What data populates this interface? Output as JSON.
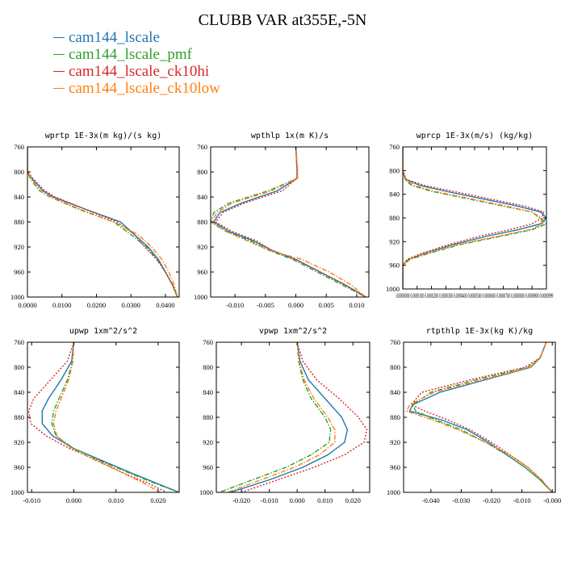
{
  "title": "CLUBB VAR at355E,-5N",
  "legend": [
    {
      "name": "cam144_lscale",
      "color": "#1f77b4",
      "dash": "solid"
    },
    {
      "name": "cam144_lscale_pmf",
      "color": "#2ca02c",
      "dash": "dashdot"
    },
    {
      "name": "cam144_lscale_ck10hi",
      "color": "#d62728",
      "dash": "dotted"
    },
    {
      "name": "cam144_lscale_ck10low",
      "color": "#ff7f0e",
      "dash": "dashdot"
    }
  ],
  "chart_data": [
    {
      "type": "line",
      "title": "wprtp  1E-3x(m kg)/(s kg)",
      "xlim": [
        0,
        0.044
      ],
      "ylim": [
        760,
        1000
      ],
      "xticks": [
        0,
        0.01,
        0.02,
        0.03,
        0.04
      ],
      "xtick_labels": [
        "0.0000",
        "0.0100",
        "0.0200",
        "0.0300",
        "0.0400"
      ],
      "yticks": [
        760,
        800,
        840,
        880,
        920,
        960,
        1000
      ],
      "ytick_labels": [
        "760",
        "800",
        "840",
        "880",
        "920",
        "960",
        "1000"
      ],
      "y": [
        760,
        800,
        810,
        820,
        830,
        840,
        860,
        880,
        900,
        920,
        940,
        960,
        980,
        1000
      ],
      "series": [
        {
          "name": "cam144_lscale",
          "values": [
            0,
            0,
            0.0012,
            0.0028,
            0.0045,
            0.0075,
            0.017,
            0.027,
            0.031,
            0.035,
            0.038,
            0.04,
            0.042,
            0.0435
          ]
        },
        {
          "name": "cam144_lscale_pmf",
          "values": [
            0,
            0,
            0.0008,
            0.002,
            0.0035,
            0.0065,
            0.015,
            0.025,
            0.03,
            0.0345,
            0.0375,
            0.04,
            0.042,
            0.0435
          ]
        },
        {
          "name": "cam144_lscale_ck10hi",
          "values": [
            0,
            0,
            0.0015,
            0.0032,
            0.005,
            0.008,
            0.017,
            0.026,
            0.031,
            0.034,
            0.0375,
            0.04,
            0.042,
            0.0435
          ]
        },
        {
          "name": "cam144_lscale_ck10low",
          "values": [
            0,
            0,
            0.001,
            0.0022,
            0.0038,
            0.0068,
            0.0155,
            0.025,
            0.032,
            0.036,
            0.039,
            0.041,
            0.0425,
            0.0435
          ]
        }
      ]
    },
    {
      "type": "line",
      "title": "wpthlp  1x(m K)/s",
      "xlim": [
        -0.014,
        0.012
      ],
      "ylim": [
        760,
        1000
      ],
      "xticks": [
        -0.01,
        -0.005,
        0,
        0.005,
        0.01
      ],
      "xtick_labels": [
        "-0.010",
        "-0.005",
        "0.000",
        "0.005",
        "0.010"
      ],
      "yticks": [
        760,
        800,
        840,
        880,
        920,
        960,
        1000
      ],
      "ytick_labels": [
        "760",
        "800",
        "840",
        "880",
        "920",
        "960",
        "1000"
      ],
      "y": [
        760,
        800,
        810,
        830,
        850,
        865,
        880,
        895,
        910,
        925,
        940,
        960,
        980,
        1000
      ],
      "series": [
        {
          "name": "cam144_lscale",
          "values": [
            0,
            0.0002,
            0.0002,
            -0.003,
            -0.009,
            -0.0125,
            -0.0135,
            -0.011,
            -0.007,
            -0.004,
            0.0,
            0.004,
            0.008,
            0.0115
          ]
        },
        {
          "name": "cam144_lscale_pmf",
          "values": [
            0,
            0.0003,
            0.0003,
            -0.0045,
            -0.011,
            -0.0135,
            -0.014,
            -0.0115,
            -0.0075,
            -0.0045,
            -0.0005,
            0.0035,
            0.0075,
            0.0115
          ]
        },
        {
          "name": "cam144_lscale_ck10hi",
          "values": [
            0,
            0.0002,
            0.0002,
            -0.0022,
            -0.0085,
            -0.012,
            -0.0132,
            -0.0105,
            -0.0065,
            -0.004,
            0.0,
            0.004,
            0.008,
            0.0115
          ]
        },
        {
          "name": "cam144_lscale_ck10low",
          "values": [
            0,
            0.0003,
            0.0003,
            -0.004,
            -0.0105,
            -0.013,
            -0.0138,
            -0.0115,
            -0.008,
            -0.0045,
            0.001,
            0.0055,
            0.009,
            0.0115
          ]
        }
      ]
    },
    {
      "type": "line",
      "title": "wprcp  1E-3x(m/s) (kg/kg)",
      "xlim": [
        0,
        0.0001
      ],
      "ylim": [
        760,
        1000
      ],
      "xticks": [
        0,
        1e-05,
        2e-05,
        3e-05,
        4e-05,
        5e-05,
        6e-05,
        7e-05,
        8e-05,
        9e-05,
        0.0001
      ],
      "xtick_labels": [
        "0.0000000",
        "0.0000100",
        "0.0000200",
        "0.0000300",
        "0.0000400",
        "0.0000500",
        "0.0000600",
        "0.0000700",
        "0.0000800",
        "0.0000900",
        "0.0000999"
      ],
      "yticks": [
        760,
        800,
        840,
        880,
        920,
        960,
        1000
      ],
      "ytick_labels": [
        "760",
        "800",
        "840",
        "880",
        "920",
        "960",
        "1000"
      ],
      "y": [
        760,
        800,
        815,
        825,
        835,
        845,
        860,
        870,
        880,
        890,
        900,
        910,
        925,
        940,
        950,
        960,
        1000
      ],
      "series": [
        {
          "name": "cam144_lscale",
          "values": [
            0,
            0,
            2e-06,
            1.2e-05,
            3e-05,
            5e-05,
            8e-05,
            9.6e-05,
            0.0001,
            9.6e-05,
            8e-05,
            6e-05,
            3.5e-05,
            1.5e-05,
            4e-06,
            0,
            0
          ]
        },
        {
          "name": "cam144_lscale_pmf",
          "values": [
            0,
            0,
            1.5e-06,
            6e-06,
            2e-05,
            4e-05,
            7e-05,
            9e-05,
            9.6e-05,
            0.0001,
            9e-05,
            7e-05,
            4e-05,
            1.8e-05,
            5e-06,
            0,
            0
          ]
        },
        {
          "name": "cam144_lscale_ck10hi",
          "values": [
            0,
            0,
            2.5e-06,
            1.5e-05,
            3.5e-05,
            5.5e-05,
            8.5e-05,
            9.8e-05,
            9.7e-05,
            9e-05,
            7.4e-05,
            5.5e-05,
            3.2e-05,
            1.3e-05,
            3e-06,
            0,
            0
          ]
        },
        {
          "name": "cam144_lscale_ck10low",
          "values": [
            0,
            0,
            1.5e-06,
            8e-06,
            2.2e-05,
            4.2e-05,
            7.2e-05,
            9e-05,
            9.5e-05,
            9.8e-05,
            8.8e-05,
            6.8e-05,
            3.8e-05,
            1.6e-05,
            4e-06,
            0,
            0
          ]
        }
      ]
    },
    {
      "type": "line",
      "title": "upwp  1xm^2/s^2",
      "xlim": [
        -0.011,
        0.025
      ],
      "ylim": [
        760,
        1000
      ],
      "xticks": [
        -0.01,
        0,
        0.01,
        0.02
      ],
      "xtick_labels": [
        "-0.010",
        "0.000",
        "0.010",
        "0.020"
      ],
      "yticks": [
        760,
        800,
        840,
        880,
        920,
        960,
        1000
      ],
      "ytick_labels": [
        "760",
        "800",
        "840",
        "880",
        "920",
        "960",
        "1000"
      ],
      "y": [
        760,
        790,
        820,
        850,
        870,
        890,
        910,
        930,
        950,
        970,
        985,
        1000
      ],
      "series": [
        {
          "name": "cam144_lscale",
          "values": [
            0,
            -0.0005,
            -0.003,
            -0.006,
            -0.0075,
            -0.0075,
            -0.005,
            0.0,
            0.007,
            0.014,
            0.0195,
            0.025
          ]
        },
        {
          "name": "cam144_lscale_pmf",
          "values": [
            0,
            -0.0003,
            -0.0015,
            -0.0035,
            -0.0048,
            -0.0052,
            -0.0042,
            0.0,
            0.0065,
            0.0135,
            0.019,
            0.025
          ]
        },
        {
          "name": "cam144_lscale_ck10hi",
          "values": [
            0,
            -0.0015,
            -0.0055,
            -0.0095,
            -0.0107,
            -0.0102,
            -0.0065,
            -0.001,
            0.006,
            0.012,
            0.0175,
            0.022
          ]
        },
        {
          "name": "cam144_lscale_ck10low",
          "values": [
            0,
            -0.0002,
            -0.0012,
            -0.003,
            -0.0042,
            -0.0048,
            -0.004,
            -0.0005,
            0.0055,
            0.012,
            0.0165,
            0.0205
          ]
        }
      ]
    },
    {
      "type": "line",
      "title": "vpwp  1xm^2/s^2",
      "xlim": [
        -0.029,
        0.026
      ],
      "ylim": [
        760,
        1000
      ],
      "xticks": [
        -0.02,
        -0.01,
        0,
        0.01,
        0.02
      ],
      "xtick_labels": [
        "-0.020",
        "-0.010",
        "0.000",
        "0.010",
        "0.020"
      ],
      "yticks": [
        760,
        800,
        840,
        880,
        920,
        960,
        1000
      ],
      "ytick_labels": [
        "760",
        "800",
        "840",
        "880",
        "920",
        "960",
        "1000"
      ],
      "y": [
        760,
        790,
        820,
        850,
        880,
        900,
        920,
        940,
        960,
        980,
        1000
      ],
      "series": [
        {
          "name": "cam144_lscale",
          "values": [
            0,
            0.001,
            0.004,
            0.01,
            0.016,
            0.018,
            0.017,
            0.011,
            0.002,
            -0.01,
            -0.024
          ]
        },
        {
          "name": "cam144_lscale_pmf",
          "values": [
            0,
            0.0005,
            0.002,
            0.005,
            0.01,
            0.012,
            0.0115,
            0.005,
            -0.004,
            -0.016,
            -0.028
          ]
        },
        {
          "name": "cam144_lscale_ck10hi",
          "values": [
            0,
            0.002,
            0.007,
            0.015,
            0.022,
            0.025,
            0.024,
            0.017,
            0.006,
            -0.007,
            -0.02
          ]
        },
        {
          "name": "cam144_lscale_ck10low",
          "values": [
            0,
            0.0006,
            0.0025,
            0.006,
            0.011,
            0.0135,
            0.0135,
            0.008,
            -0.001,
            -0.013,
            -0.025
          ]
        }
      ]
    },
    {
      "type": "line",
      "title": "rtpthlp  1E-3x(kg K)/kg",
      "xlim": [
        -0.049,
        0.001
      ],
      "ylim": [
        760,
        1000
      ],
      "xticks": [
        -0.04,
        -0.03,
        -0.02,
        -0.01,
        0
      ],
      "xtick_labels": [
        "-0.040",
        "-0.030",
        "-0.020",
        "-0.010",
        "-0.000"
      ],
      "yticks": [
        760,
        800,
        840,
        880,
        920,
        960,
        1000
      ],
      "ytick_labels": [
        "760",
        "800",
        "840",
        "880",
        "920",
        "960",
        "1000"
      ],
      "y": [
        760,
        785,
        800,
        820,
        840,
        860,
        870,
        885,
        900,
        920,
        940,
        960,
        980,
        1000
      ],
      "series": [
        {
          "name": "cam144_lscale",
          "values": [
            -0.002,
            -0.004,
            -0.007,
            -0.022,
            -0.037,
            -0.046,
            -0.047,
            -0.036,
            -0.028,
            -0.021,
            -0.015,
            -0.009,
            -0.004,
            0.0
          ]
        },
        {
          "name": "cam144_lscale_pmf",
          "values": [
            -0.002,
            -0.004,
            -0.008,
            -0.025,
            -0.04,
            -0.046,
            -0.045,
            -0.038,
            -0.03,
            -0.022,
            -0.015,
            -0.009,
            -0.004,
            0.0
          ]
        },
        {
          "name": "cam144_lscale_ck10hi",
          "values": [
            -0.002,
            -0.004,
            -0.009,
            -0.027,
            -0.043,
            -0.0465,
            -0.042,
            -0.034,
            -0.027,
            -0.02,
            -0.014,
            -0.008,
            -0.0035,
            0.0
          ]
        },
        {
          "name": "cam144_lscale_ck10low",
          "values": [
            -0.002,
            -0.004,
            -0.007,
            -0.023,
            -0.039,
            -0.047,
            -0.048,
            -0.039,
            -0.031,
            -0.022,
            -0.014,
            -0.008,
            -0.0035,
            0.0
          ]
        }
      ]
    }
  ]
}
